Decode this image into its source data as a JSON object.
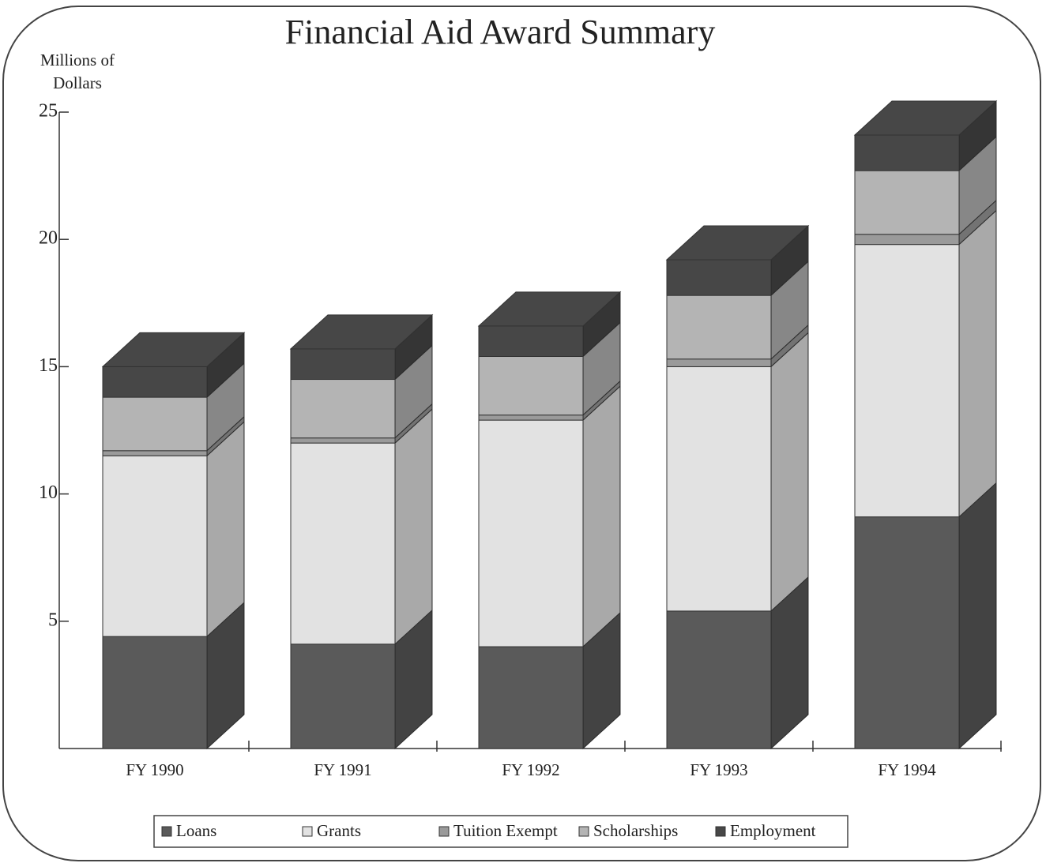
{
  "chart_data": {
    "type": "stacked_bar_3d",
    "title": "Financial Aid Award Summary",
    "y_label": "Millions of Dollars",
    "categories": [
      "FY 1990",
      "FY 1991",
      "FY 1992",
      "FY 1993",
      "FY 1994"
    ],
    "series": [
      {
        "name": "Loans",
        "color": "#5a5a5a",
        "values": [
          4.4,
          4.1,
          4.0,
          5.4,
          9.1
        ]
      },
      {
        "name": "Grants",
        "color": "#e2e2e2",
        "values": [
          7.1,
          7.9,
          8.9,
          9.6,
          10.7
        ]
      },
      {
        "name": "Tuition Exempt",
        "color": "#9a9a9a",
        "values": [
          0.2,
          0.2,
          0.2,
          0.3,
          0.4
        ]
      },
      {
        "name": "Scholarships",
        "color": "#b4b4b4",
        "values": [
          2.1,
          2.3,
          2.3,
          2.5,
          2.5
        ]
      },
      {
        "name": "Employment",
        "color": "#474747",
        "values": [
          1.2,
          1.2,
          1.2,
          1.4,
          1.4
        ]
      }
    ],
    "ylim": [
      0,
      25
    ],
    "yticks": [
      5,
      10,
      15,
      20,
      25
    ],
    "legend": "bottom"
  }
}
